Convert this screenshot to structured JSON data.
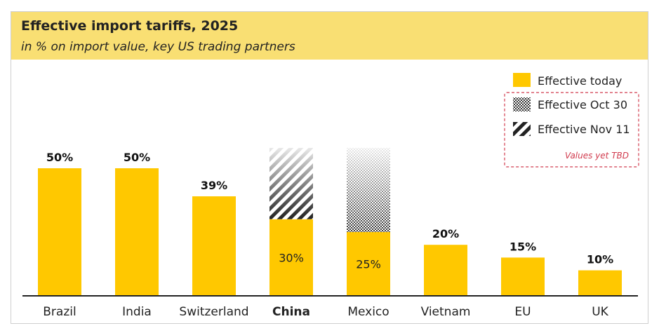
{
  "title": "Effective import tariffs, 2025",
  "subtitle": "in % on import value, key US trading partners",
  "colors": {
    "bar": "#ffc800",
    "header": "#f9df73",
    "note": "#d13b4e"
  },
  "legend": {
    "today": "Effective today",
    "oct30": "Effective Oct 30",
    "nov11": "Effective Nov 11",
    "note": "Values yet TBD"
  },
  "chart_data": {
    "type": "bar",
    "title": "Effective import tariffs, 2025",
    "ylabel": "in % on import value",
    "ylim": [
      0,
      58
    ],
    "categories": [
      "Brazil",
      "India",
      "Switzerland",
      "China",
      "Mexico",
      "Vietnam",
      "EU",
      "UK"
    ],
    "values": [
      50,
      50,
      39,
      30,
      25,
      20,
      15,
      10
    ],
    "labels": [
      "50%",
      "50%",
      "39%",
      "30%",
      "25%",
      "20%",
      "15%",
      "10%"
    ],
    "label_inside": [
      false,
      false,
      false,
      true,
      true,
      false,
      false,
      false
    ],
    "highlight": [
      "China"
    ],
    "pending": [
      {
        "category": "China",
        "kind": "Effective Nov 11",
        "from": 30,
        "to": 58
      },
      {
        "category": "Mexico",
        "kind": "Effective Oct 30",
        "from": 25,
        "to": 58
      }
    ]
  }
}
